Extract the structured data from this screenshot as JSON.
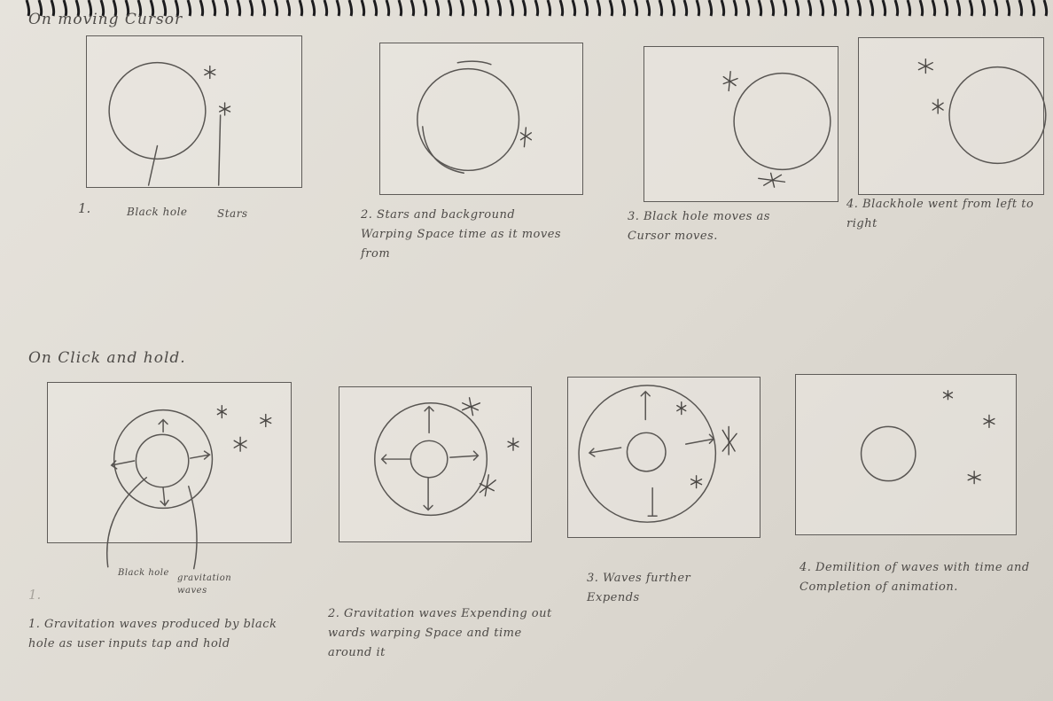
{
  "sections": {
    "moving": {
      "title": "On moving Cursor"
    },
    "click": {
      "title": "On Click and hold."
    }
  },
  "moving_panels": [
    {
      "caption": "1.",
      "labels": [
        "Black hole",
        "Stars"
      ]
    },
    {
      "caption": "2. Stars and background Warping Space time as it moves from"
    },
    {
      "caption": "3. Black hole moves as Cursor moves."
    },
    {
      "caption": "4. Blackhole went from left to right"
    }
  ],
  "click_panels": [
    {
      "caption": "1. Gravitation waves produced by black hole as user inputs tap and hold",
      "labels": [
        "Black hole",
        "gravitation waves"
      ]
    },
    {
      "caption": "2. Gravitation waves Expending out wards warping Space and time around it"
    },
    {
      "caption": "3. Waves further Expends"
    },
    {
      "caption": "4. Demilition of waves with time and Completion of animation."
    }
  ],
  "stray_mark": "1."
}
